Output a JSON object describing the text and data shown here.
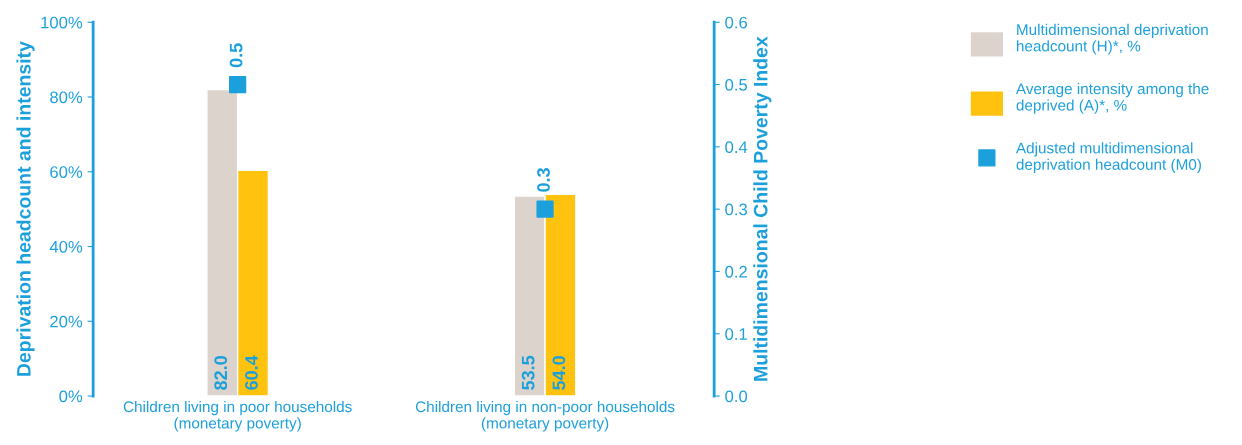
{
  "chart_data": {
    "type": "bar",
    "categories": [
      "Children living in poor households\n(monetary poverty)",
      "Children living in non-poor households\n(monetary poverty)"
    ],
    "ylabel": "Deprivation headcount and intensity",
    "y2label": "Multidimensional Child Poverty Index",
    "ylim": [
      0,
      100
    ],
    "yticks": [
      {
        "value": 0,
        "label": "0%"
      },
      {
        "value": 20,
        "label": "20%"
      },
      {
        "value": 40,
        "label": "40%"
      },
      {
        "value": 60,
        "label": "60%"
      },
      {
        "value": 80,
        "label": "80%"
      },
      {
        "value": 100,
        "label": "100%"
      }
    ],
    "y2lim": [
      0,
      0.6
    ],
    "y2ticks": [
      {
        "value": 0,
        "label": "0.0"
      },
      0.1,
      0.2,
      0.3,
      0.4,
      0.5,
      0.6
    ],
    "series": [
      {
        "name": "Multidimensional deprivation headcount (H)*, %",
        "color": "#dcd3cc",
        "values": [
          82.0,
          53.5
        ],
        "value_labels": [
          "82.0",
          "53.5"
        ]
      },
      {
        "name": "Average intensity among the deprived (A)*, %",
        "color": "#ffc20e",
        "values": [
          60.4,
          54.0
        ],
        "value_labels": [
          "60.4",
          "54.0"
        ]
      },
      {
        "name": "Adjusted multidimensional deprivation headcount (M0)",
        "type": "scatter",
        "axis": "y2",
        "marker": "square",
        "color": "#1ca0dc",
        "values": [
          0.5,
          0.3
        ],
        "value_labels": [
          "0.5",
          "0.3"
        ]
      }
    ],
    "data_labels": true,
    "legend": "right",
    "grid": false
  }
}
